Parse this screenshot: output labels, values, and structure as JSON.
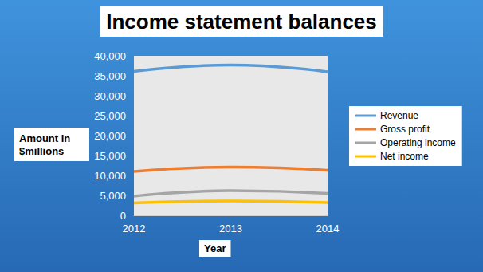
{
  "chart_data": {
    "type": "line",
    "title": "Income statement balances",
    "x_label": "Year",
    "y_label": "Amount in $millions",
    "categories": [
      "2012",
      "2013",
      "2014"
    ],
    "series": [
      {
        "name": "Revenue",
        "color": "#5b9bd5",
        "values": [
          36100,
          37700,
          36000
        ]
      },
      {
        "name": "Gross profit",
        "color": "#ed7d31",
        "values": [
          11000,
          12100,
          11300
        ]
      },
      {
        "name": "Operating income",
        "color": "#a5a5a5",
        "values": [
          4800,
          6200,
          5500
        ]
      },
      {
        "name": "Net income",
        "color": "#ffc000",
        "values": [
          3100,
          3600,
          3200
        ]
      }
    ],
    "ylim": [
      0,
      40000
    ],
    "yticks": [
      0,
      {
        "value": 5000,
        "label": "5,000"
      },
      {
        "value": 10000,
        "label": "10,000"
      },
      {
        "value": 15000,
        "label": "15,000"
      },
      {
        "value": 20000,
        "label": "20,000"
      },
      {
        "value": 25000,
        "label": "25,000"
      },
      {
        "value": 30000,
        "label": "30,000"
      },
      {
        "value": 35000,
        "label": "35,000"
      },
      {
        "value": 40000,
        "label": "40,000"
      }
    ],
    "grid": false,
    "legend": "right"
  }
}
